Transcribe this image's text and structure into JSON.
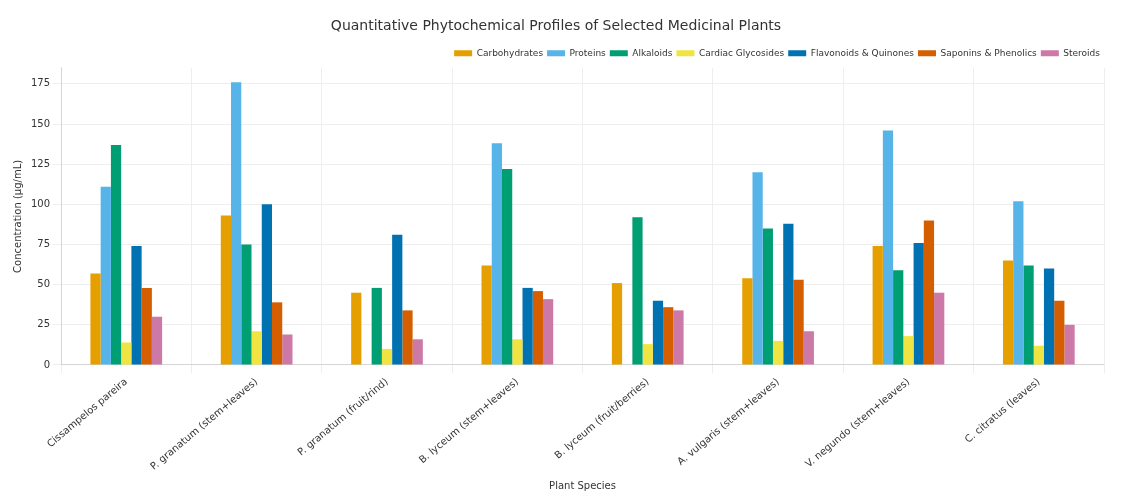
{
  "chart_data": {
    "type": "bar",
    "title": "Quantitative Phytochemical Profiles of Selected Medicinal Plants",
    "xlabel": "Plant Species",
    "ylabel": "Concentration (µg/mL)",
    "categories": [
      "Cissampelos pareira",
      "P. granatum (stem+leaves)",
      "P. granatum (fruit/rind)",
      "B. lyceum (stem+leaves)",
      "B. lyceum (fruit/berries)",
      "A. vulgaris (stem+leaves)",
      "V. negundo (stem+leaves)",
      "C. citratus (leaves)"
    ],
    "series": [
      {
        "name": "Carbohydrates",
        "color": "#e69f00",
        "values": [
          57,
          93,
          45,
          62,
          51,
          54,
          74,
          65
        ]
      },
      {
        "name": "Proteins",
        "color": "#56b4e9",
        "values": [
          111,
          176,
          null,
          138,
          null,
          120,
          146,
          102
        ]
      },
      {
        "name": "Alkaloids",
        "color": "#009e73",
        "values": [
          137,
          75,
          48,
          122,
          92,
          85,
          59,
          62
        ]
      },
      {
        "name": "Cardiac Glycosides",
        "color": "#f0e442",
        "values": [
          14,
          21,
          10,
          16,
          13,
          15,
          18,
          12
        ]
      },
      {
        "name": "Flavonoids & Quinones",
        "color": "#0072b2",
        "values": [
          74,
          100,
          81,
          48,
          40,
          88,
          76,
          60
        ]
      },
      {
        "name": "Saponins & Phenolics",
        "color": "#d55e00",
        "values": [
          48,
          39,
          34,
          46,
          36,
          53,
          90,
          40
        ]
      },
      {
        "name": "Steroids",
        "color": "#cc79a7",
        "values": [
          30,
          19,
          16,
          41,
          34,
          21,
          45,
          25
        ]
      }
    ],
    "ylim": [
      0,
      185
    ],
    "yticks": [
      0,
      25,
      50,
      75,
      100,
      125,
      150,
      175
    ],
    "grid": true,
    "legend": "top right"
  }
}
